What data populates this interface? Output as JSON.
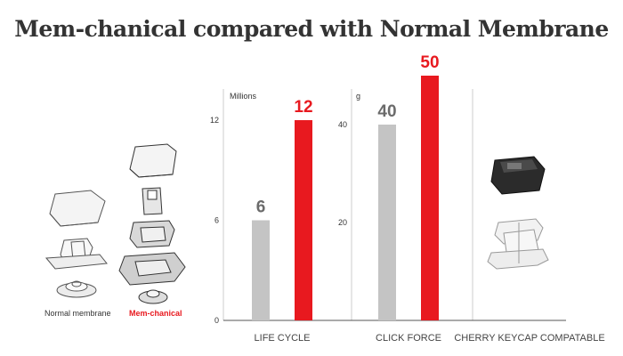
{
  "header": {
    "title": "Mem-chanical compared with Normal Membrane"
  },
  "illustrations": {
    "left_caption": "Normal membrane",
    "right_caption": "Mem-chanical"
  },
  "colors": {
    "normal": "#c4c4c4",
    "memchanical": "#e8191f",
    "axis": "#555555"
  },
  "chart_data": [
    {
      "type": "bar",
      "title": "",
      "xlabel": "LIFE CYCLE",
      "ylabel": "Millions",
      "ylim": [
        0,
        13
      ],
      "yticks": [
        0,
        6,
        12
      ],
      "grid": false,
      "categories": [
        "Normal membrane",
        "Mem-chanical"
      ],
      "values": [
        6,
        12
      ],
      "value_labels": [
        "6",
        "12"
      ]
    },
    {
      "type": "bar",
      "title": "",
      "xlabel": "CLICK FORCE",
      "ylabel": "g",
      "ylim": [
        0,
        52
      ],
      "yticks": [
        20,
        40
      ],
      "grid": false,
      "categories": [
        "Normal membrane",
        "Mem-chanical"
      ],
      "values": [
        40,
        50
      ],
      "value_labels": [
        "40",
        "50"
      ]
    }
  ],
  "extra_panel": {
    "label": "CHERRY KEYCAP COMPATABLE"
  }
}
